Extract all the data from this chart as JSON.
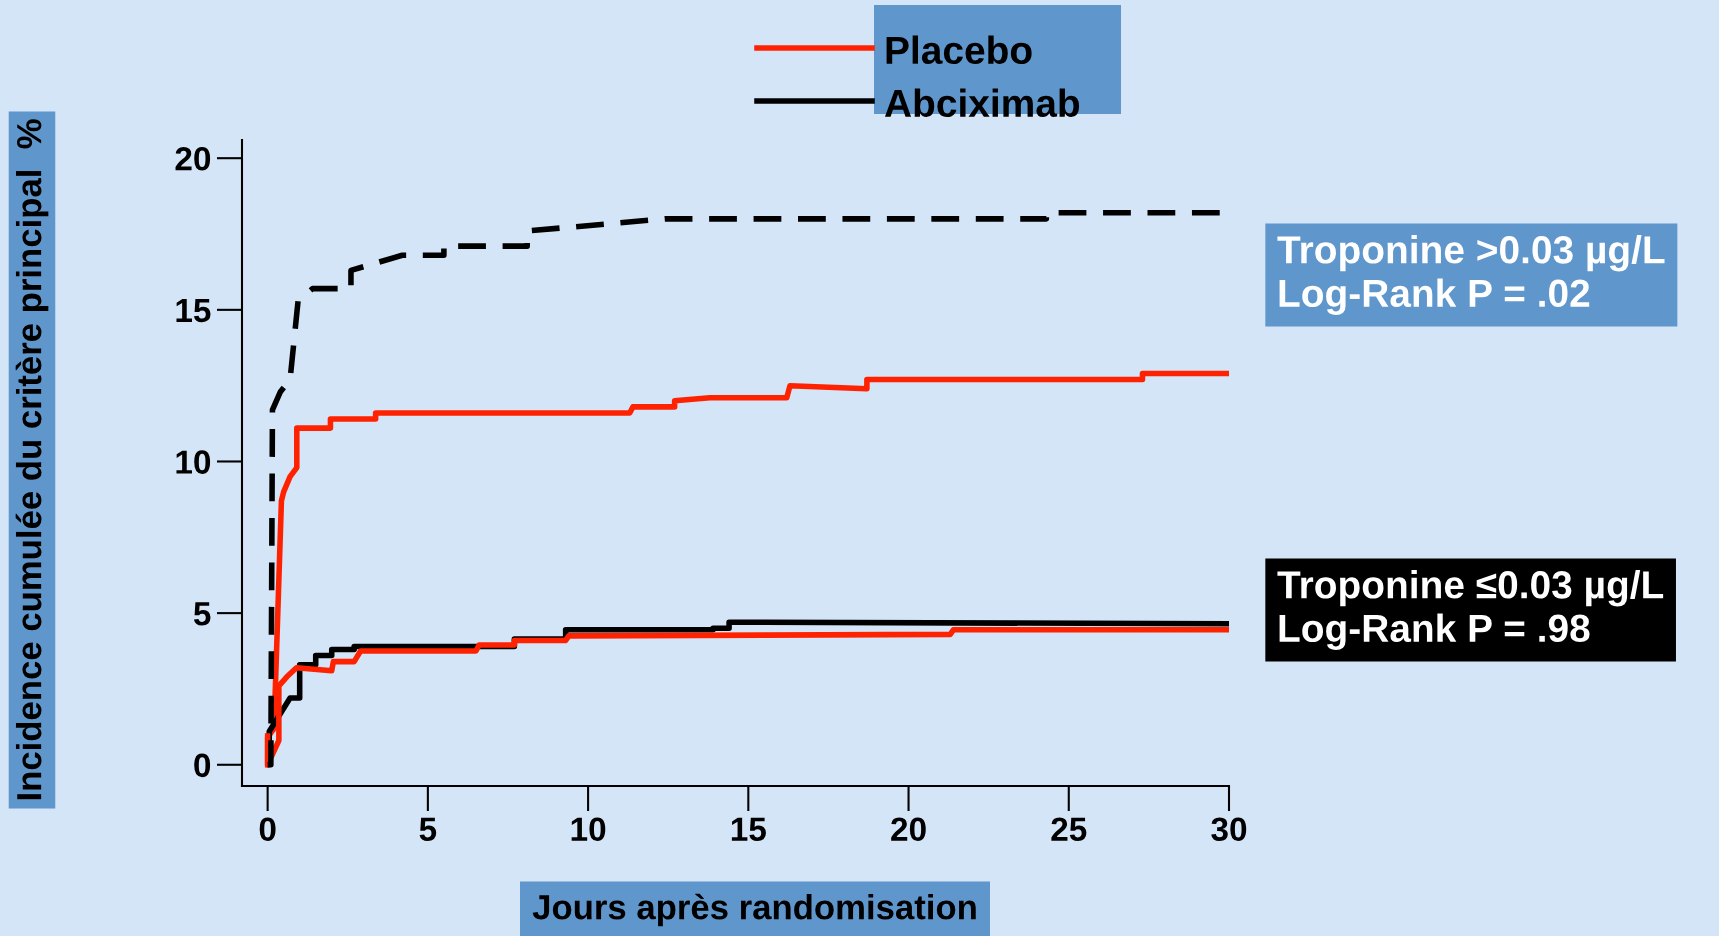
{
  "chart_data": {
    "type": "line",
    "xlabel": "Jours après randomisation",
    "ylabel": "Incidence cumulée du critère principal  %",
    "xlim": [
      -0.8,
      30
    ],
    "xticks": [
      0,
      5,
      10,
      15,
      20,
      25,
      30
    ],
    "ylim": [
      -0.7,
      20.6
    ],
    "yticks": [
      0,
      5,
      10,
      15,
      20
    ],
    "grid": false,
    "legend": "top",
    "marker": "none",
    "series": [
      {
        "name": "Placebo",
        "color": "#ff2200",
        "line_style": "solid",
        "x": [
          0,
          0,
          0.2,
          0.43,
          0.5,
          0.7,
          0.91,
          0.91,
          1.96,
          1.96,
          3.37,
          3.37,
          11.3,
          11.4,
          12.7,
          12.7,
          13.8,
          16.2,
          16.3,
          18.7,
          18.7,
          27.3,
          27.3,
          30
        ],
        "values": [
          0,
          0.9,
          1.2,
          8.7,
          9.0,
          9.5,
          9.8,
          11.1,
          11.1,
          11.4,
          11.4,
          11.6,
          11.6,
          11.8,
          11.8,
          12.0,
          12.1,
          12.1,
          12.5,
          12.4,
          12.7,
          12.7,
          12.9,
          12.9
        ]
      },
      {
        "name": "Abciximab",
        "color": "#000000",
        "line_style": "solid",
        "x": [
          0.05,
          0.05,
          0.7,
          1.0,
          1.0,
          1.5,
          1.5,
          2.0,
          2.0,
          2.7,
          2.7,
          7.7,
          7.7,
          9.3,
          9.3,
          13.9,
          13.9,
          14.4,
          14.4,
          30
        ],
        "values": [
          0.1,
          1.1,
          2.2,
          2.2,
          3.3,
          3.3,
          3.6,
          3.6,
          3.8,
          3.8,
          3.9,
          3.9,
          4.15,
          4.15,
          4.45,
          4.45,
          4.5,
          4.5,
          4.7,
          4.65
        ]
      },
      {
        "color": "#ff2200",
        "line_style": "solid",
        "x": [
          0,
          0,
          0.35,
          0.35,
          0.6,
          0.9,
          2.0,
          2.05,
          2.7,
          2.9,
          6.5,
          6.6,
          7.7,
          7.7,
          9.3,
          9.4,
          21.3,
          21.4,
          30
        ],
        "values": [
          0.95,
          0,
          0.8,
          2.6,
          2.9,
          3.2,
          3.1,
          3.4,
          3.4,
          3.75,
          3.75,
          3.95,
          3.95,
          4.1,
          4.1,
          4.25,
          4.3,
          4.45,
          4.45
        ]
      },
      {
        "color": "#000000",
        "line_style": "dashed",
        "x": [
          0,
          0.1,
          0.15,
          0.4,
          0.7,
          0.95,
          1.4,
          2.6,
          2.6,
          4.2,
          5.5,
          5.5,
          8.1,
          8.1,
          12.4,
          24.3,
          24.3,
          30
        ],
        "values": [
          0,
          0,
          11.7,
          12.3,
          12.7,
          15.3,
          15.7,
          15.7,
          16.3,
          16.8,
          16.8,
          17.1,
          17.1,
          17.6,
          18.0,
          18.0,
          18.2,
          18.2
        ]
      }
    ],
    "annotations": [
      "Troponine >0.03 µg/L\nLog-Rank P = .02",
      "Troponine ≤0.03 µg/L\nLog-Rank P = .98"
    ]
  }
}
